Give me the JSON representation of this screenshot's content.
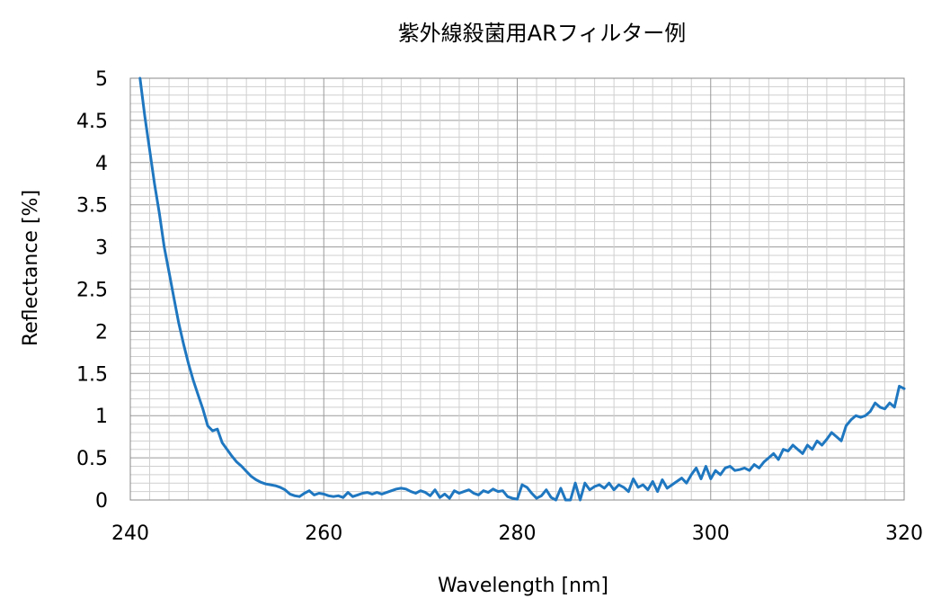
{
  "chart_data": {
    "type": "line",
    "title": "紫外線殺菌用ARフィルター例",
    "xlabel": "Wavelength [nm]",
    "ylabel": "Reflectance [%]",
    "xlim": [
      240,
      320
    ],
    "ylim": [
      0,
      5
    ],
    "x_ticks": [
      "240",
      "260",
      "280",
      "300",
      "320"
    ],
    "y_ticks": [
      "0",
      "0.5",
      "1",
      "1.5",
      "2",
      "2.5",
      "3",
      "3.5",
      "4",
      "4.5",
      "5"
    ],
    "grid": true,
    "legend": "none",
    "series": [
      {
        "color": "#1f77c0",
        "x": [
          241.0,
          241.5,
          242.0,
          242.5,
          243.0,
          243.5,
          244.0,
          244.5,
          245.0,
          245.5,
          246.0,
          246.5,
          247.0,
          247.5,
          248.0,
          248.5,
          249.0,
          249.5,
          250.0,
          250.5,
          251.0,
          251.5,
          252.0,
          252.5,
          253.0,
          253.5,
          254.0,
          254.5,
          255.0,
          255.5,
          256.0,
          256.5,
          257.0,
          257.5,
          258.0,
          258.5,
          259.0,
          259.5,
          260.0,
          260.5,
          261.0,
          261.5,
          262.0,
          262.5,
          263.0,
          263.5,
          264.0,
          264.5,
          265.0,
          265.5,
          266.0,
          266.5,
          267.0,
          267.5,
          268.0,
          268.5,
          269.0,
          269.5,
          270.0,
          270.5,
          271.0,
          271.5,
          272.0,
          272.5,
          273.0,
          273.5,
          274.0,
          274.5,
          275.0,
          275.5,
          276.0,
          276.5,
          277.0,
          277.5,
          278.0,
          278.5,
          279.0,
          279.5,
          280.0,
          280.5,
          281.0,
          281.5,
          282.0,
          282.5,
          283.0,
          283.5,
          284.0,
          284.5,
          285.0,
          285.5,
          286.0,
          286.5,
          287.0,
          287.5,
          288.0,
          288.5,
          289.0,
          289.5,
          290.0,
          290.5,
          291.0,
          291.5,
          292.0,
          292.5,
          293.0,
          293.5,
          294.0,
          294.5,
          295.0,
          295.5,
          296.0,
          296.5,
          297.0,
          297.5,
          298.0,
          298.5,
          299.0,
          299.5,
          300.0,
          300.5,
          301.0,
          301.5,
          302.0,
          302.5,
          303.0,
          303.5,
          304.0,
          304.5,
          305.0,
          305.5,
          306.0,
          306.5,
          307.0,
          307.5,
          308.0,
          308.5,
          309.0,
          309.5,
          310.0,
          310.5,
          311.0,
          311.5,
          312.0,
          312.5,
          313.0,
          313.5,
          314.0,
          314.5,
          315.0,
          315.5,
          316.0,
          316.5,
          317.0,
          317.5,
          318.0,
          318.5,
          319.0,
          319.5,
          320.0
        ],
        "y": [
          5.0,
          4.55,
          4.15,
          3.75,
          3.4,
          3.0,
          2.7,
          2.4,
          2.1,
          1.85,
          1.62,
          1.42,
          1.25,
          1.08,
          0.88,
          0.82,
          0.84,
          0.68,
          0.6,
          0.52,
          0.45,
          0.4,
          0.34,
          0.28,
          0.24,
          0.21,
          0.19,
          0.18,
          0.17,
          0.15,
          0.12,
          0.07,
          0.05,
          0.04,
          0.08,
          0.11,
          0.06,
          0.08,
          0.07,
          0.05,
          0.04,
          0.05,
          0.03,
          0.09,
          0.04,
          0.06,
          0.08,
          0.09,
          0.07,
          0.09,
          0.07,
          0.09,
          0.11,
          0.13,
          0.14,
          0.13,
          0.1,
          0.08,
          0.11,
          0.09,
          0.05,
          0.12,
          0.03,
          0.07,
          0.02,
          0.11,
          0.08,
          0.1,
          0.12,
          0.08,
          0.06,
          0.11,
          0.09,
          0.13,
          0.1,
          0.11,
          0.04,
          0.02,
          0.01,
          0.18,
          0.15,
          0.08,
          0.02,
          0.05,
          0.12,
          0.03,
          0.0,
          0.14,
          0.0,
          0.0,
          0.2,
          0.0,
          0.2,
          0.12,
          0.16,
          0.18,
          0.14,
          0.2,
          0.12,
          0.18,
          0.15,
          0.1,
          0.25,
          0.15,
          0.18,
          0.12,
          0.22,
          0.1,
          0.24,
          0.14,
          0.18,
          0.22,
          0.26,
          0.2,
          0.3,
          0.38,
          0.25,
          0.4,
          0.25,
          0.35,
          0.3,
          0.38,
          0.4,
          0.35,
          0.36,
          0.38,
          0.35,
          0.42,
          0.38,
          0.45,
          0.5,
          0.55,
          0.48,
          0.6,
          0.58,
          0.65,
          0.6,
          0.55,
          0.65,
          0.6,
          0.7,
          0.65,
          0.72,
          0.8,
          0.75,
          0.7,
          0.88,
          0.95,
          1.0,
          0.98,
          1.0,
          1.05,
          1.15,
          1.1,
          1.08,
          1.15,
          1.1,
          1.35,
          1.32
        ]
      }
    ]
  }
}
